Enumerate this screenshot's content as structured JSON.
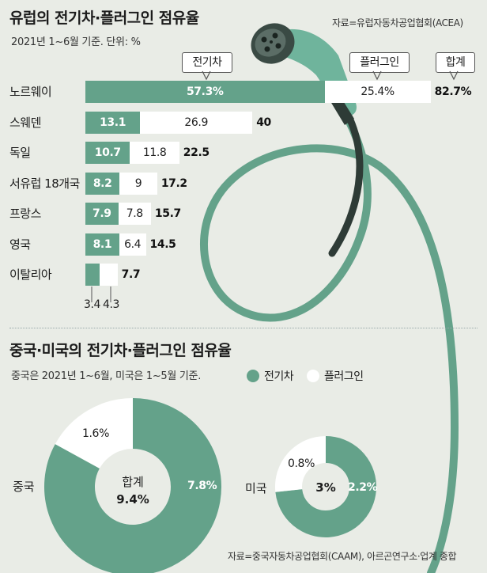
{
  "header": {
    "title": "유럽의 전기차·플러그인 점유율",
    "subtitle": "2021년 1~6월 기준. 단위: %",
    "source": "자료=유럽자동차공업협회(ACEA)"
  },
  "chart_data": [
    {
      "type": "bar",
      "stacked": true,
      "orientation": "horizontal",
      "title": "유럽의 전기차·플러그인 점유율",
      "subtitle": "2021년 1~6월 기준. 단위: %",
      "categories": [
        "노르웨이",
        "스웨덴",
        "독일",
        "서유럽 18개국",
        "프랑스",
        "영국",
        "이탈리아"
      ],
      "series": [
        {
          "name": "전기차",
          "values": [
            57.3,
            13.1,
            10.7,
            8.2,
            7.9,
            8.1,
            3.4
          ],
          "labels": [
            "57.3%",
            "13.1",
            "10.7",
            "8.2",
            "7.9",
            "8.1",
            "3.4"
          ],
          "color": "#64a28a"
        },
        {
          "name": "플러그인",
          "values": [
            25.4,
            26.9,
            11.8,
            9,
            7.8,
            6.4,
            4.3
          ],
          "labels": [
            "25.4%",
            "26.9",
            "11.8",
            "9",
            "7.8",
            "6.4",
            "4.3"
          ],
          "color": "#ffffff"
        }
      ],
      "totals": [
        82.7,
        40,
        22.5,
        17.2,
        15.7,
        14.5,
        7.7
      ],
      "total_labels": [
        "82.7%",
        "40",
        "22.5",
        "17.2",
        "15.7",
        "14.5",
        "7.7"
      ],
      "series_tags": [
        "전기차",
        "플러그인",
        "합계"
      ],
      "xlim": [
        0,
        100
      ]
    },
    {
      "type": "pie",
      "donut": true,
      "title": "중국·미국의 전기차·플러그인 점유율",
      "subtitle": "중국은 2021년 1~6월, 미국은 1~5월 기준.",
      "legend": [
        {
          "name": "전기차",
          "color": "#64a28a"
        },
        {
          "name": "플러그인",
          "color": "#ffffff"
        }
      ],
      "charts": [
        {
          "name": "중국",
          "center_label": "합계",
          "center_value": "9.4%",
          "slices": [
            {
              "name": "전기차",
              "value": 7.8,
              "label": "7.8%"
            },
            {
              "name": "플러그인",
              "value": 1.6,
              "label": "1.6%"
            }
          ]
        },
        {
          "name": "미국",
          "center_value": "3%",
          "slices": [
            {
              "name": "전기차",
              "value": 2.2,
              "label": "2.2%"
            },
            {
              "name": "플러그인",
              "value": 0.8,
              "label": "0.8%"
            }
          ]
        }
      ],
      "source": "자료=중국자동차공업협회(CAAM), 아르곤연구소·업계 종합"
    }
  ],
  "colors": {
    "ev": "#64a28a",
    "phev": "#ffffff",
    "background": "#e9ece6",
    "cable": "#64a28a"
  },
  "icons": [
    "ev-charging-plug-icon"
  ]
}
